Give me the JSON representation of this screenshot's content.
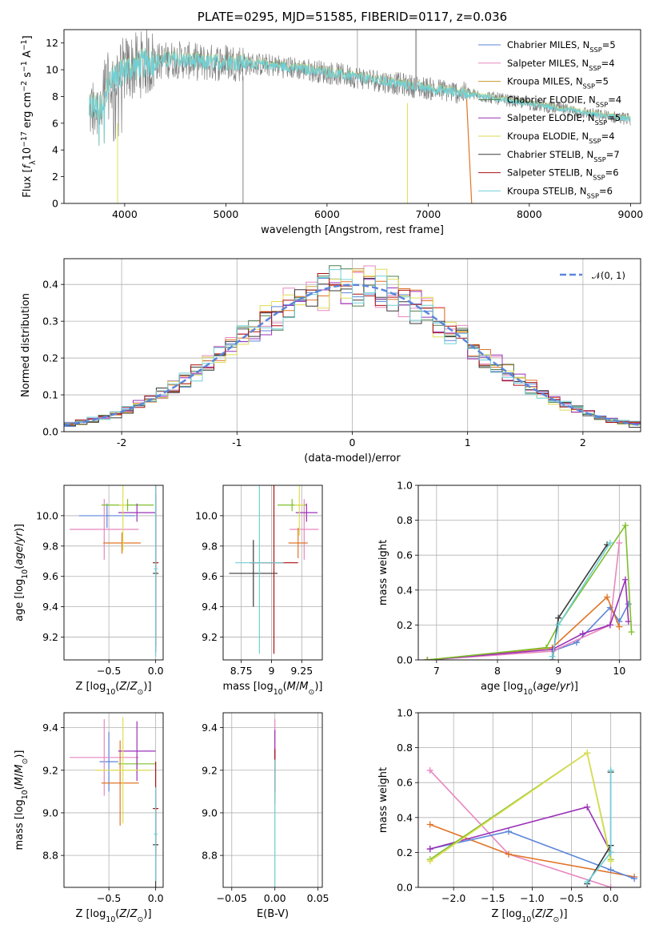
{
  "title": "PLATE=0295, MJD=51585, FIBERID=0117, z=0.036",
  "colors": {
    "chabrier_miles": "#5b86d9",
    "salpeter_miles": "#e887c0",
    "kroupa_miles": "#c99a2e",
    "chabrier_elodie": "#4f7f4f",
    "salpeter_elodie": "#9b30b8",
    "kroupa_elodie": "#dede52",
    "chabrier_stelib": "#3a3a3a",
    "salpeter_stelib": "#aa1111",
    "kroupa_stelib": "#6fd0d8",
    "orange": "#e07426",
    "green": "#7dbf2a",
    "data_gray": "#808080",
    "gauss": "#5b86d9",
    "grid": "#b0b0b0"
  },
  "chart_data": [
    {
      "id": "spectrum",
      "type": "line",
      "xlabel": "wavelength [Angstrom, rest frame]",
      "ylabel": "Flux [f_λ 10^-17 erg cm^-2 s^-1 A^-1]",
      "xlim": [
        3400,
        9100
      ],
      "ylim": [
        0,
        13
      ],
      "xticks": [
        4000,
        5000,
        6000,
        7000,
        8000,
        9000
      ],
      "yticks": [
        0,
        2,
        4,
        6,
        8,
        10,
        12
      ],
      "grid": false,
      "legend_position": "top-right",
      "legend": [
        {
          "name": "Chabrier MILES, N_SSP=5",
          "color": "#5b86d9"
        },
        {
          "name": "Salpeter MILES, N_SSP=4",
          "color": "#e887c0"
        },
        {
          "name": "Kroupa MILES, N_SSP=5",
          "color": "#c99a2e"
        },
        {
          "name": "Chabrier ELODIE, N_SSP=4",
          "color": "#4f7f4f"
        },
        {
          "name": "Salpeter ELODIE, N_SSP=5",
          "color": "#9b30b8"
        },
        {
          "name": "Kroupa ELODIE, N_SSP=4",
          "color": "#dede52"
        },
        {
          "name": "Chabrier STELIB, N_SSP=7",
          "color": "#3a3a3a"
        },
        {
          "name": "Salpeter STELIB, N_SSP=6",
          "color": "#aa1111"
        },
        {
          "name": "Kroupa STELIB, N_SSP=6",
          "color": "#6fd0d8"
        }
      ],
      "continuum": {
        "x": [
          3650,
          3800,
          4000,
          4200,
          4500,
          4800,
          5000,
          5500,
          6000,
          6500,
          7000,
          7400,
          7800,
          8200,
          8600,
          9000
        ],
        "y": [
          8,
          8.5,
          10,
          10.5,
          10.8,
          10.5,
          10.6,
          10.3,
          9.8,
          9.2,
          8.6,
          8.2,
          7.7,
          7.2,
          6.7,
          6.3
        ]
      }
    },
    {
      "id": "residuals",
      "type": "bar",
      "xlabel": "(data-model)/error",
      "ylabel": "Normed distribution",
      "xlim": [
        -2.5,
        2.5
      ],
      "ylim": [
        0,
        0.47
      ],
      "xticks": [
        -2,
        -1,
        0,
        1,
        2
      ],
      "yticks": [
        0.0,
        0.1,
        0.2,
        0.3,
        0.4
      ],
      "grid": true,
      "legend_position": "top-right",
      "gauss_label": "N(0,1)",
      "bin_width": 0.1
    },
    {
      "id": "age_vs_Z",
      "type": "scatter",
      "xlabel": "Z [log10(Z/Z⊙)]",
      "ylabel": "age  [log10(age/yr)]",
      "xlim": [
        -0.98,
        0.08
      ],
      "ylim": [
        9.05,
        10.2
      ],
      "xticks": [
        -0.5,
        0.0
      ],
      "xtick_labels": [
        "−0.5",
        "0.0"
      ],
      "yticks": [
        9.2,
        9.4,
        9.6,
        9.8,
        10.0
      ],
      "grid": true,
      "errorbars": [
        {
          "color": "#5b86d9",
          "x": -0.52,
          "y": 10.0,
          "x_err": 0.3,
          "y_err": 0.08
        },
        {
          "color": "#e887c0",
          "x": -0.55,
          "y": 9.91,
          "x_err": 0.37,
          "y_err": 0.2
        },
        {
          "color": "#e07426",
          "x": -0.36,
          "y": 9.82,
          "x_err": 0.2,
          "y_err": 0.07
        },
        {
          "color": "#7dbf2a",
          "x": -0.3,
          "y": 10.07,
          "x_err": 0.28,
          "y_err": 0.04
        },
        {
          "color": "#9b30b8",
          "x": -0.2,
          "y": 10.02,
          "x_err": 0.2,
          "y_err": 0.06
        },
        {
          "color": "#dede52",
          "x": -0.35,
          "y": 10.07,
          "x_err": 0.04,
          "y_err": 0.3
        },
        {
          "color": "#3a3a3a",
          "x": 0.0,
          "y": 9.62,
          "x_err": 0.03,
          "y_err": 0.52
        },
        {
          "color": "#aa1111",
          "x": 0.0,
          "y": 9.69,
          "x_err": 0.03,
          "y_err": 0.55
        },
        {
          "color": "#6fd0d8",
          "x": 0.0,
          "y": 9.65,
          "x_err": 0.02,
          "y_err": 0.58
        }
      ]
    },
    {
      "id": "age_vs_mass",
      "type": "scatter",
      "xlabel": "mass [log10(M/M⊙)]",
      "xlim": [
        8.6,
        9.42
      ],
      "ylim": [
        9.05,
        10.2
      ],
      "xticks": [
        8.75,
        9.0,
        9.25
      ],
      "yticks": [
        9.2,
        9.4,
        9.6,
        9.8,
        10.0
      ],
      "grid": true,
      "errorbars": [
        {
          "color": "#e887c0",
          "x": 9.27,
          "y": 9.91,
          "x_err": 0.12,
          "y_err": 0.2
        },
        {
          "color": "#e07426",
          "x": 9.22,
          "y": 9.82,
          "x_err": 0.08,
          "y_err": 0.1
        },
        {
          "color": "#7dbf2a",
          "x": 9.17,
          "y": 10.07,
          "x_err": 0.12,
          "y_err": 0.04
        },
        {
          "color": "#9b30b8",
          "x": 9.29,
          "y": 10.02,
          "x_err": 0.09,
          "y_err": 0.06
        },
        {
          "color": "#dede52",
          "x": 9.23,
          "y": 10.07,
          "x_err": 0.04,
          "y_err": 0.2
        },
        {
          "color": "#3a3a3a",
          "x": 8.85,
          "y": 9.62,
          "x_err": 0.2,
          "y_err": 0.22
        },
        {
          "color": "#aa1111",
          "x": 9.02,
          "y": 9.69,
          "x_err": 0.2,
          "y_err": 0.6
        },
        {
          "color": "#6fd0d8",
          "x": 8.9,
          "y": 9.69,
          "x_err": 0.2,
          "y_err": 0.6
        }
      ]
    },
    {
      "id": "weight_vs_age",
      "type": "line",
      "xlabel": "age  [log10(age/yr)]",
      "ylabel": "mass weight",
      "xlim": [
        6.7,
        10.35
      ],
      "ylim": [
        0,
        1.0
      ],
      "xticks": [
        7,
        8,
        9,
        10
      ],
      "yticks": [
        0.0,
        0.2,
        0.4,
        0.6,
        0.8,
        1.0
      ],
      "grid": true,
      "series": [
        {
          "color": "#5b86d9",
          "x": [
            8.9,
            9.3,
            9.85,
            10.0,
            10.15
          ],
          "y": [
            0.05,
            0.1,
            0.3,
            0.22,
            0.32
          ]
        },
        {
          "color": "#e887c0",
          "x": [
            6.85,
            8.9,
            9.85,
            10.0
          ],
          "y": [
            0.0,
            0.05,
            0.2,
            0.67
          ]
        },
        {
          "color": "#e07426",
          "x": [
            6.85,
            8.9,
            9.8,
            10.0
          ],
          "y": [
            0.0,
            0.07,
            0.36,
            0.19
          ]
        },
        {
          "color": "#9b30b8",
          "x": [
            6.85,
            8.9,
            9.4,
            9.85,
            10.1,
            10.15
          ],
          "y": [
            0.0,
            0.06,
            0.15,
            0.2,
            0.46,
            0.22
          ]
        },
        {
          "color": "#7dbf2a",
          "x": [
            6.85,
            8.8,
            9.0,
            10.1,
            10.2
          ],
          "y": [
            0.0,
            0.07,
            0.2,
            0.77,
            0.16
          ]
        },
        {
          "color": "#3a3a3a",
          "x": [
            8.9,
            9.0,
            9.8
          ],
          "y": [
            0.0,
            0.24,
            0.66
          ]
        },
        {
          "color": "#6fd0d8",
          "x": [
            8.9,
            9.0,
            9.85
          ],
          "y": [
            0.02,
            0.2,
            0.67
          ]
        }
      ]
    },
    {
      "id": "mass_vs_Z",
      "type": "scatter",
      "xlabel": "Z [log10(Z/Z⊙)]",
      "ylabel": "mass [log10(M/M⊙)]",
      "xlim": [
        -0.98,
        0.08
      ],
      "ylim": [
        8.65,
        9.47
      ],
      "xticks": [
        -0.5,
        0.0
      ],
      "xtick_labels": [
        "−0.5",
        "0.0"
      ],
      "yticks": [
        8.8,
        9.0,
        9.2,
        9.4
      ],
      "grid": true,
      "errorbars": [
        {
          "color": "#5b86d9",
          "x": -0.5,
          "y": 9.24,
          "x_err": 0.1,
          "y_err": 0.14
        },
        {
          "color": "#e887c0",
          "x": -0.55,
          "y": 9.26,
          "x_err": 0.37,
          "y_err": 0.18
        },
        {
          "color": "#e07426",
          "x": -0.38,
          "y": 9.14,
          "x_err": 0.2,
          "y_err": 0.2
        },
        {
          "color": "#7dbf2a",
          "x": -0.2,
          "y": 9.23,
          "x_err": 0.2,
          "y_err": 0.04
        },
        {
          "color": "#9b30b8",
          "x": -0.2,
          "y": 9.29,
          "x_err": 0.2,
          "y_err": 0.14
        },
        {
          "color": "#dede52",
          "x": -0.35,
          "y": 9.2,
          "x_err": 0.3,
          "y_err": 0.25
        },
        {
          "color": "#3a3a3a",
          "x": 0.0,
          "y": 8.85,
          "x_err": 0.03,
          "y_err": 0.2
        },
        {
          "color": "#aa1111",
          "x": 0.0,
          "y": 9.02,
          "x_err": 0.03,
          "y_err": 0.22
        },
        {
          "color": "#6fd0d8",
          "x": 0.0,
          "y": 8.9,
          "x_err": 0.02,
          "y_err": 0.22
        }
      ]
    },
    {
      "id": "mass_vs_ebv",
      "type": "scatter",
      "xlabel": "E(B-V)",
      "xlim": [
        -0.06,
        0.055
      ],
      "ylim": [
        8.65,
        9.47
      ],
      "xticks": [
        -0.05,
        0.0,
        0.05
      ],
      "xtick_labels": [
        "−0.05",
        "0.00",
        "0.05"
      ],
      "yticks": [
        8.8,
        9.0,
        9.2,
        9.4
      ],
      "grid": true,
      "errorbars": [
        {
          "color": "#e887c0",
          "x": 0.0,
          "y": 9.26,
          "x_err": 0,
          "y_err": 0.18
        },
        {
          "color": "#9b30b8",
          "x": 0.0,
          "y": 9.29,
          "x_err": 0,
          "y_err": 0.1
        },
        {
          "color": "#e07426",
          "x": 0.0,
          "y": 9.14,
          "x_err": 0,
          "y_err": 0.1
        },
        {
          "color": "#aa1111",
          "x": 0.0,
          "y": 9.2,
          "x_err": 0,
          "y_err": 0.1
        },
        {
          "color": "#6fd0d8",
          "x": 0.0,
          "y": 8.95,
          "x_err": 0,
          "y_err": 0.3
        }
      ]
    },
    {
      "id": "weight_vs_Z",
      "type": "line",
      "xlabel": "Z [log10(Z/Z⊙)]",
      "ylabel": "mass weight",
      "xlim": [
        -2.45,
        0.38
      ],
      "ylim": [
        0,
        1.0
      ],
      "xticks": [
        -2.0,
        -1.5,
        -1.0,
        -0.5,
        0.0
      ],
      "xtick_labels": [
        "−2.0",
        "−1.5",
        "−1.0",
        "−0.5",
        "0.0"
      ],
      "yticks": [
        0.0,
        0.2,
        0.4,
        0.6,
        0.8,
        1.0
      ],
      "grid": true,
      "series": [
        {
          "color": "#e887c0",
          "x": [
            -2.3,
            -1.3,
            0.0
          ],
          "y": [
            0.67,
            0.19,
            0.0
          ]
        },
        {
          "color": "#e07426",
          "x": [
            -2.3,
            -1.3,
            0.3
          ],
          "y": [
            0.36,
            0.19,
            0.06
          ]
        },
        {
          "color": "#5b86d9",
          "x": [
            -2.3,
            -1.3,
            0.0,
            0.3
          ],
          "y": [
            0.22,
            0.32,
            0.1,
            0.05
          ]
        },
        {
          "color": "#9b30b8",
          "x": [
            -2.3,
            -0.3,
            0.0
          ],
          "y": [
            0.22,
            0.46,
            0.2
          ]
        },
        {
          "color": "#7dbf2a",
          "x": [
            -2.3,
            -0.3,
            0.0
          ],
          "y": [
            0.16,
            0.77,
            0.16
          ]
        },
        {
          "color": "#dede52",
          "x": [
            -2.3,
            -0.3,
            0.0
          ],
          "y": [
            0.15,
            0.77,
            0.15
          ]
        },
        {
          "color": "#3a3a3a",
          "x": [
            -0.3,
            0.0,
            0.0
          ],
          "y": [
            0.02,
            0.24,
            0.66
          ]
        },
        {
          "color": "#6fd0d8",
          "x": [
            -0.3,
            0.0,
            0.0
          ],
          "y": [
            0.03,
            0.2,
            0.67
          ]
        }
      ]
    }
  ]
}
